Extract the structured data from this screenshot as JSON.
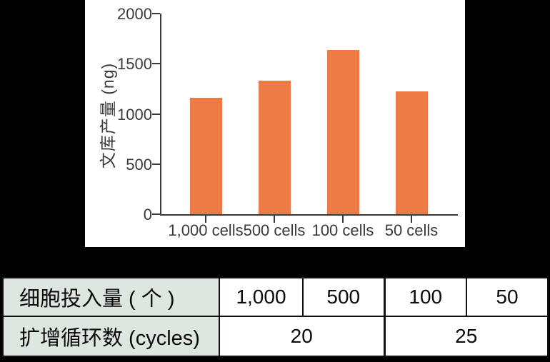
{
  "chart_data": {
    "type": "bar",
    "title": "",
    "ylabel": "文库产量 (ng)",
    "xlabel": "",
    "categories": [
      "1,000 cells",
      "500 cells",
      "100 cells",
      "50 cells"
    ],
    "values": [
      1160,
      1330,
      1640,
      1225
    ],
    "ylim": [
      0,
      2000
    ],
    "yticks": [
      0,
      500,
      1000,
      1500,
      2000
    ],
    "bar_color": "#EC7B45",
    "grid": false,
    "legend_position": "none",
    "background": "#ffffff"
  },
  "table": {
    "header_bg": "#dde6e1",
    "rows": [
      {
        "header": "细胞投入量 ( 个 )",
        "cells": [
          "1,000",
          "500",
          "100",
          "50"
        ]
      },
      {
        "header": "扩增循环数 (cycles)",
        "cells": [
          "20",
          "25"
        ]
      }
    ]
  },
  "colors": {
    "page_background": "#000000",
    "axis": "#3a3a3a",
    "table_border": "#111111"
  }
}
